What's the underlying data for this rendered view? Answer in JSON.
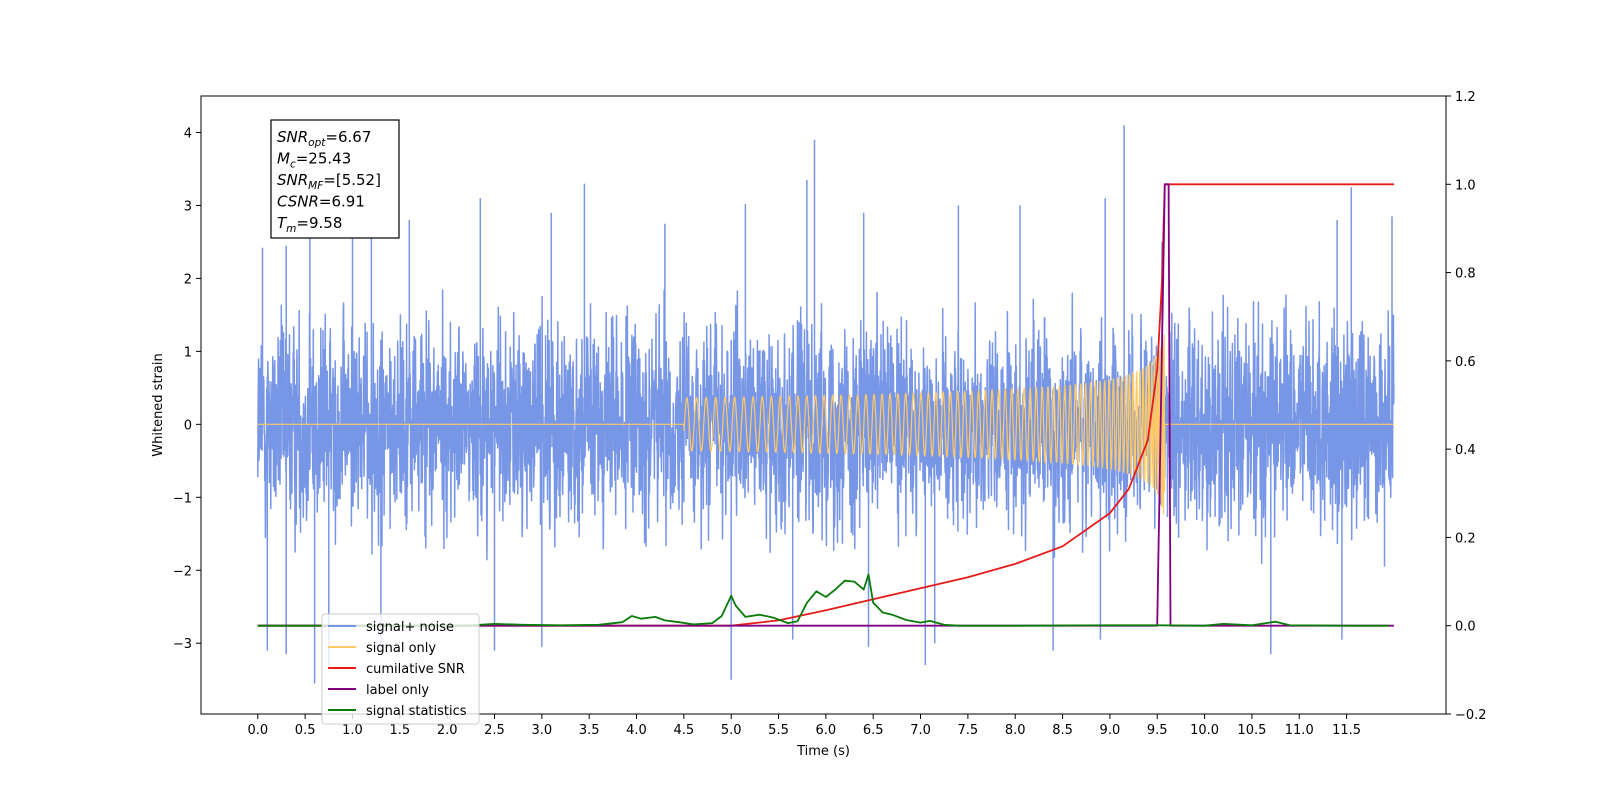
{
  "chart_data": {
    "type": "line",
    "title": "",
    "xlabel": "Time (s)",
    "ylabel_left": "Whitened strain",
    "ylabel_right": "",
    "xlim": [
      -0.6,
      12.55
    ],
    "ylim_left": [
      -3.97,
      4.5
    ],
    "ylim_right": [
      -0.2,
      1.2
    ],
    "x_ticks": [
      "0.0",
      "0.5",
      "1.0",
      "1.5",
      "2.0",
      "2.5",
      "3.0",
      "3.5",
      "4.0",
      "4.5",
      "5.0",
      "5.5",
      "6.0",
      "6.5",
      "7.0",
      "7.5",
      "8.0",
      "8.5",
      "9.0",
      "9.5",
      "10.0",
      "10.5",
      "11.0",
      "11.5"
    ],
    "y_ticks_left": [
      "−3",
      "−2",
      "−1",
      "0",
      "1",
      "2",
      "3",
      "4"
    ],
    "y_ticks_right": [
      "−0.2",
      "0.0",
      "0.2",
      "0.4",
      "0.6",
      "0.8",
      "1.0",
      "1.2"
    ],
    "grid": false,
    "legend_position": "lower-left",
    "annotation": {
      "lines": [
        {
          "base": "SNR",
          "sub": "opt",
          "value": "=6.67"
        },
        {
          "base": "M",
          "sub": "c",
          "value": "=25.43"
        },
        {
          "base": "SNR",
          "sub": "MF",
          "value": "=[5.52]"
        },
        {
          "base": "CSNR",
          "sub": "",
          "value": "=6.91"
        },
        {
          "base": "T",
          "sub": "m",
          "value": "=9.58"
        }
      ]
    },
    "series": [
      {
        "name": "signal+ noise",
        "axis": "left",
        "color": "#7896e6",
        "kind": "noise",
        "x_range": [
          0.0,
          12.0
        ],
        "typical_band": [
          -1.6,
          1.6
        ],
        "peaks": [
          [
            0.05,
            2.42
          ],
          [
            0.3,
            2.45
          ],
          [
            0.55,
            2.7
          ],
          [
            1.0,
            2.6
          ],
          [
            1.2,
            3.2
          ],
          [
            1.6,
            2.8
          ],
          [
            2.35,
            3.1
          ],
          [
            3.1,
            2.9
          ],
          [
            3.45,
            3.3
          ],
          [
            4.3,
            2.75
          ],
          [
            5.15,
            3.02
          ],
          [
            5.8,
            3.35
          ],
          [
            5.88,
            3.9
          ],
          [
            6.4,
            2.9
          ],
          [
            7.4,
            3.0
          ],
          [
            8.05,
            3.0
          ],
          [
            8.95,
            3.1
          ],
          [
            9.15,
            4.1
          ],
          [
            9.55,
            2.5
          ],
          [
            11.4,
            2.8
          ],
          [
            11.55,
            3.25
          ],
          [
            11.98,
            2.85
          ]
        ],
        "troughs": [
          [
            0.1,
            -3.1
          ],
          [
            0.3,
            -3.15
          ],
          [
            0.6,
            -3.55
          ],
          [
            0.75,
            -3.3
          ],
          [
            1.3,
            -3.1
          ],
          [
            2.5,
            -3.1
          ],
          [
            3.0,
            -3.05
          ],
          [
            5.0,
            -3.5
          ],
          [
            5.65,
            -2.95
          ],
          [
            6.45,
            -3.05
          ],
          [
            7.05,
            -3.3
          ],
          [
            7.15,
            -3.0
          ],
          [
            8.4,
            -3.1
          ],
          [
            8.9,
            -2.95
          ],
          [
            10.7,
            -3.15
          ],
          [
            11.45,
            -2.95
          ],
          [
            11.9,
            -1.95
          ]
        ]
      },
      {
        "name": "signal only",
        "axis": "left",
        "color": "#ffc966",
        "kind": "chirp",
        "x_range": [
          0.0,
          12.0
        ],
        "merger_time": 9.58,
        "peak_amplitude": 1.45
      },
      {
        "name": "cumilative SNR",
        "axis": "right",
        "color": "#e81b1b",
        "x": [
          0.0,
          5.0,
          5.5,
          6.0,
          6.5,
          7.0,
          7.5,
          8.0,
          8.5,
          9.0,
          9.2,
          9.4,
          9.5,
          9.55,
          9.57,
          9.58,
          9.6,
          12.0
        ],
        "y": [
          0.0,
          0.0,
          0.012,
          0.035,
          0.06,
          0.085,
          0.11,
          0.14,
          0.18,
          0.255,
          0.31,
          0.42,
          0.58,
          0.78,
          0.93,
          1.0,
          1.0,
          1.0
        ]
      },
      {
        "name": "label only",
        "axis": "right",
        "color": "#800080",
        "x": [
          0.0,
          9.5,
          9.58,
          9.62,
          9.64,
          12.0
        ],
        "y": [
          0.0,
          0.0,
          1.0,
          1.0,
          0.0,
          0.0
        ]
      },
      {
        "name": "signal statistics",
        "axis": "right",
        "color": "#0a7a0a",
        "x": [
          0.0,
          2.2,
          2.5,
          2.8,
          3.2,
          3.6,
          3.85,
          3.95,
          4.05,
          4.2,
          4.3,
          4.45,
          4.6,
          4.8,
          4.9,
          5.0,
          5.05,
          5.15,
          5.3,
          5.45,
          5.6,
          5.7,
          5.8,
          5.9,
          6.0,
          6.1,
          6.2,
          6.3,
          6.4,
          6.45,
          6.5,
          6.6,
          6.7,
          6.85,
          7.0,
          7.1,
          7.25,
          7.4,
          8.0,
          9.0,
          9.5,
          10.0,
          10.2,
          10.5,
          10.75,
          10.9,
          11.5,
          11.95
        ],
        "y": [
          0.0,
          0.0,
          0.004,
          0.002,
          0.001,
          0.002,
          0.008,
          0.022,
          0.016,
          0.02,
          0.012,
          0.008,
          0.003,
          0.006,
          0.022,
          0.068,
          0.045,
          0.02,
          0.025,
          0.018,
          0.006,
          0.01,
          0.052,
          0.078,
          0.065,
          0.082,
          0.102,
          0.1,
          0.082,
          0.116,
          0.052,
          0.03,
          0.025,
          0.013,
          0.007,
          0.011,
          0.002,
          0.0,
          0.0,
          0.001,
          0.001,
          0.0,
          0.004,
          0.001,
          0.009,
          0.001,
          0.0,
          0.0
        ]
      }
    ]
  }
}
